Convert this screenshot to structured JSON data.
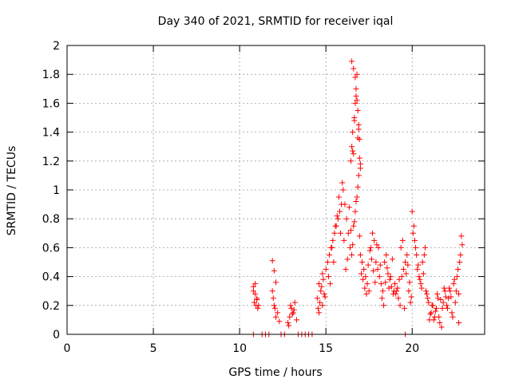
{
  "chart_data": {
    "type": "scatter",
    "title": "Day 340 of 2021, SRMTID for receiver iqal",
    "xlabel": "GPS time / hours",
    "ylabel": "SRMTID / TECUs",
    "xlim": [
      0,
      24.2
    ],
    "ylim": [
      0,
      2
    ],
    "x_ticks": [
      0,
      5,
      10,
      15,
      20
    ],
    "x_tick_labels": [
      "0",
      "5",
      "10",
      "15",
      "20"
    ],
    "y_ticks": [
      0,
      0.2,
      0.4,
      0.6,
      0.8,
      1,
      1.2,
      1.4,
      1.6,
      1.8,
      2
    ],
    "y_tick_labels": [
      "0",
      "0.2",
      "0.4",
      "0.6",
      "0.8",
      "1",
      "1.2",
      "1.4",
      "1.6",
      "1.8",
      "2"
    ],
    "grid": true,
    "marker": "plus",
    "color": "#ff0000",
    "series": [
      {
        "name": "SRMTID",
        "x": [
          10.8,
          10.9,
          11.0,
          10.85,
          10.95,
          11.05,
          10.9,
          11.0,
          11.1,
          10.8,
          11.9,
          12.0,
          12.1,
          11.95,
          12.05,
          12.2,
          12.3,
          12.0,
          11.9,
          12.1,
          12.8,
          12.9,
          13.0,
          13.1,
          13.2,
          13.3,
          12.95,
          13.05,
          13.15,
          12.85,
          14.5,
          14.6,
          14.7,
          14.8,
          14.9,
          14.55,
          14.65,
          14.75,
          14.85,
          14.95,
          14.6,
          14.8,
          15.0,
          15.1,
          15.2,
          15.3,
          15.4,
          15.5,
          15.6,
          15.7,
          15.8,
          15.9,
          15.15,
          15.35,
          15.55,
          15.75,
          15.95,
          15.25,
          15.45,
          15.65,
          15.85,
          16.0,
          16.1,
          16.2,
          16.3,
          16.4,
          16.5,
          16.6,
          16.7,
          16.8,
          16.9,
          16.05,
          16.15,
          16.25,
          16.35,
          16.45,
          16.55,
          16.65,
          16.75,
          16.85,
          16.95,
          16.45,
          16.5,
          16.55,
          16.6,
          16.65,
          16.7,
          16.75,
          16.8,
          16.85,
          16.9,
          16.95,
          17.0,
          16.5,
          16.6,
          16.7,
          16.8,
          16.9,
          17.0,
          16.55,
          16.65,
          16.75,
          16.85,
          16.95,
          17.0,
          17.1,
          17.2,
          17.3,
          17.4,
          17.5,
          17.6,
          17.7,
          17.8,
          17.9,
          17.05,
          17.15,
          17.25,
          17.35,
          17.45,
          17.55,
          17.65,
          17.75,
          17.85,
          17.95,
          18.0,
          18.1,
          18.2,
          18.3,
          18.4,
          18.5,
          18.6,
          18.7,
          18.8,
          18.9,
          18.05,
          18.15,
          18.25,
          18.35,
          18.45,
          18.55,
          18.65,
          18.75,
          18.85,
          18.95,
          19.0,
          19.1,
          19.2,
          19.3,
          19.4,
          19.5,
          19.6,
          19.7,
          19.8,
          19.9,
          19.05,
          19.15,
          19.25,
          19.35,
          19.45,
          19.55,
          19.65,
          19.75,
          19.85,
          19.95,
          20.0,
          20.1,
          20.2,
          20.3,
          20.4,
          20.5,
          20.6,
          20.7,
          20.8,
          20.9,
          20.05,
          20.15,
          20.25,
          20.35,
          20.45,
          20.55,
          20.65,
          20.75,
          20.85,
          20.95,
          21.0,
          21.1,
          21.2,
          21.3,
          21.4,
          21.5,
          21.6,
          21.7,
          21.8,
          21.9,
          21.05,
          21.15,
          21.25,
          21.35,
          21.45,
          21.55,
          21.65,
          21.75,
          21.85,
          21.95,
          22.0,
          22.1,
          22.2,
          22.3,
          22.4,
          22.5,
          22.6,
          22.7,
          22.8,
          22.9,
          22.05,
          22.15,
          22.25,
          22.35,
          22.45,
          22.55,
          22.65,
          22.75,
          22.85,
          22.7,
          10.8,
          11.3,
          11.5,
          11.7,
          12.4,
          12.6,
          13.4,
          13.6,
          13.8,
          14.0,
          14.2,
          19.6
        ],
        "y": [
          0.33,
          0.28,
          0.24,
          0.22,
          0.2,
          0.18,
          0.35,
          0.25,
          0.2,
          0.3,
          0.51,
          0.44,
          0.36,
          0.25,
          0.18,
          0.15,
          0.09,
          0.2,
          0.3,
          0.12,
          0.08,
          0.12,
          0.18,
          0.15,
          0.22,
          0.1,
          0.2,
          0.14,
          0.17,
          0.06,
          0.25,
          0.35,
          0.3,
          0.42,
          0.28,
          0.18,
          0.22,
          0.33,
          0.38,
          0.26,
          0.15,
          0.2,
          0.45,
          0.5,
          0.55,
          0.6,
          0.65,
          0.7,
          0.75,
          0.8,
          0.85,
          0.9,
          0.4,
          0.6,
          0.75,
          0.95,
          1.05,
          0.35,
          0.5,
          0.82,
          0.7,
          1.0,
          0.9,
          0.8,
          0.7,
          0.6,
          0.55,
          0.75,
          0.85,
          0.95,
          1.1,
          0.65,
          0.45,
          0.52,
          0.88,
          0.72,
          0.62,
          0.78,
          0.92,
          1.02,
          0.68,
          1.2,
          1.3,
          1.4,
          1.25,
          1.5,
          1.6,
          1.7,
          1.8,
          1.55,
          1.45,
          1.35,
          1.15,
          1.89,
          1.84,
          1.78,
          1.62,
          1.42,
          1.18,
          1.27,
          1.48,
          1.65,
          1.36,
          1.22,
          0.55,
          0.5,
          0.45,
          0.4,
          0.35,
          0.3,
          0.6,
          0.7,
          0.65,
          0.5,
          0.42,
          0.38,
          0.32,
          0.28,
          0.48,
          0.58,
          0.52,
          0.44,
          0.36,
          0.62,
          0.45,
          0.4,
          0.35,
          0.3,
          0.5,
          0.55,
          0.42,
          0.38,
          0.33,
          0.28,
          0.6,
          0.48,
          0.25,
          0.2,
          0.36,
          0.46,
          0.32,
          0.4,
          0.52,
          0.3,
          0.35,
          0.3,
          0.25,
          0.2,
          0.4,
          0.45,
          0.5,
          0.55,
          0.3,
          0.22,
          0.28,
          0.32,
          0.38,
          0.6,
          0.65,
          0.18,
          0.42,
          0.48,
          0.36,
          0.26,
          0.85,
          0.75,
          0.6,
          0.45,
          0.4,
          0.35,
          0.5,
          0.55,
          0.3,
          0.25,
          0.7,
          0.65,
          0.55,
          0.48,
          0.38,
          0.32,
          0.42,
          0.6,
          0.28,
          0.22,
          0.1,
          0.15,
          0.2,
          0.12,
          0.18,
          0.25,
          0.08,
          0.05,
          0.22,
          0.3,
          0.14,
          0.2,
          0.1,
          0.16,
          0.28,
          0.12,
          0.24,
          0.18,
          0.32,
          0.26,
          0.2,
          0.25,
          0.3,
          0.15,
          0.35,
          0.22,
          0.4,
          0.28,
          0.55,
          0.62,
          0.18,
          0.32,
          0.26,
          0.12,
          0.38,
          0.3,
          0.45,
          0.5,
          0.68,
          0.08,
          0.0,
          0.0,
          0.0,
          0.0,
          0.0,
          0.0,
          0.0,
          0.0,
          0.0,
          0.0,
          0.0,
          0.0
        ]
      }
    ]
  }
}
